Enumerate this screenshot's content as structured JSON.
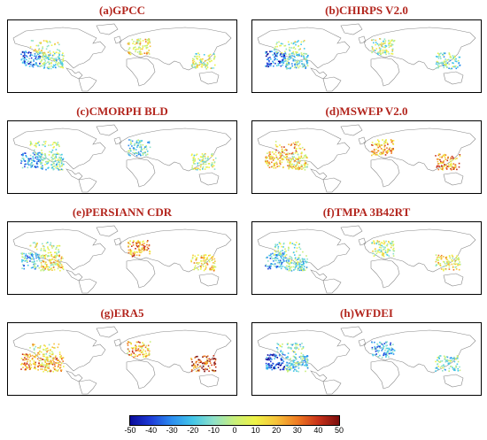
{
  "panels": [
    {
      "id": "a",
      "title": "(a)GPCC",
      "pattern": "gpcc"
    },
    {
      "id": "b",
      "title": "(b)CHIRPS V2.0",
      "pattern": "chirps"
    },
    {
      "id": "c",
      "title": "(c)CMORPH BLD",
      "pattern": "cmorph"
    },
    {
      "id": "d",
      "title": "(d)MSWEP V2.0",
      "pattern": "mswep"
    },
    {
      "id": "e",
      "title": "(e)PERSIANN CDR",
      "pattern": "persiann"
    },
    {
      "id": "f",
      "title": "(f)TMPA 3B42RT",
      "pattern": "tmpa"
    },
    {
      "id": "g",
      "title": "(g)ERA5",
      "pattern": "era5"
    },
    {
      "id": "h",
      "title": "(h)WFDEI",
      "pattern": "wfdei"
    }
  ],
  "colorbar": {
    "ticks": [
      "-50",
      "-40",
      "-30",
      "-20",
      "-10",
      "0",
      "10",
      "20",
      "30",
      "40",
      "50"
    ],
    "range": [
      -50,
      50
    ],
    "colors": [
      "#0a0a9a",
      "#1e3cd8",
      "#2c8ef0",
      "#43c6e8",
      "#8fe1c9",
      "#c8ef7a",
      "#eef246",
      "#f6c23a",
      "#ef7b22",
      "#c8321a",
      "#7a0c0c"
    ]
  }
}
